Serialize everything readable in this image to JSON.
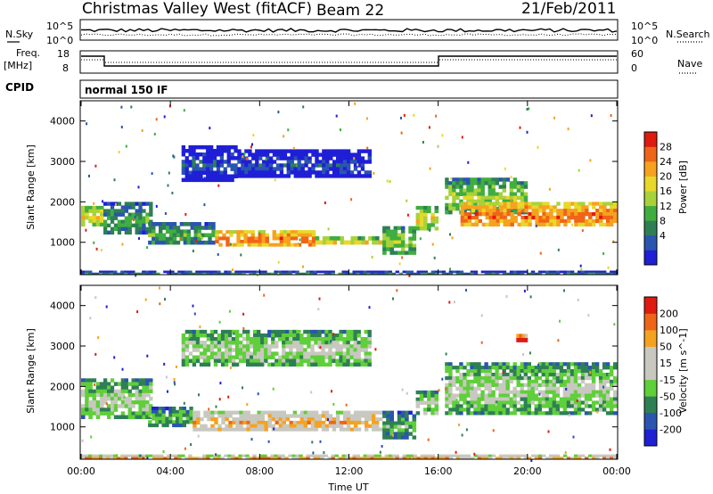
{
  "header": {
    "station": "Christmas Valley West (fitACF)",
    "beam": "Beam 22",
    "date": "21/Feb/2011"
  },
  "status_panels": {
    "nsky_label": "N.Sky",
    "nsky_ticks": [
      "10^5",
      "10^0"
    ],
    "nsearch_label": "N.Search",
    "nsearch_ticks": [
      "10^5",
      "10^0"
    ],
    "freq_label_1": "Freq.",
    "freq_label_2": "[MHz]",
    "freq_ticks": [
      "18",
      "8"
    ],
    "nave_label": "Nave",
    "nave_ticks": [
      "60",
      "0"
    ],
    "cpid_label": "CPID",
    "cpid_value": "normal 150 IF"
  },
  "colors": {
    "power": [
      "#1f1fd6",
      "#2a55b0",
      "#2f7f55",
      "#3fae3f",
      "#a9d23a",
      "#e8d82a",
      "#f6a21e",
      "#f06418",
      "#e01a0e"
    ],
    "velocity": [
      "#1f1fd6",
      "#2a55b0",
      "#2f7f55",
      "#5fcf3a",
      "#c8c8c0",
      "#c8c8c0",
      "#f6a21e",
      "#f06418",
      "#e01a0e"
    ]
  },
  "chart_data": [
    {
      "type": "heatmap",
      "name": "power",
      "ylabel": "Slant Range [km]",
      "ylim": [
        200,
        4500
      ],
      "yticks": [
        "4000",
        "3000",
        "2000",
        "1000"
      ],
      "colorbar_label": "Power [dB]",
      "colorbar_ticks": [
        "28",
        "24",
        "20",
        "16",
        "12",
        "8",
        "4"
      ],
      "x_unit": "hours UT",
      "bands": [
        {
          "x": [
            0.0,
            1.0
          ],
          "y": [
            1400,
            1900
          ],
          "level": 5
        },
        {
          "x": [
            1.0,
            3.2
          ],
          "y": [
            1200,
            2000
          ],
          "level": 3
        },
        {
          "x": [
            3.0,
            6.0
          ],
          "y": [
            950,
            1500
          ],
          "level": 3
        },
        {
          "x": [
            6.0,
            10.5
          ],
          "y": [
            900,
            1300
          ],
          "level": 7
        },
        {
          "x": [
            10.5,
            13.5
          ],
          "y": [
            950,
            1150
          ],
          "level": 5
        },
        {
          "x": [
            13.5,
            15.0
          ],
          "y": [
            700,
            1400
          ],
          "level": 4
        },
        {
          "x": [
            15.0,
            16.0
          ],
          "y": [
            1300,
            1900
          ],
          "level": 5
        },
        {
          "x": [
            16.3,
            20.0
          ],
          "y": [
            1700,
            2600
          ],
          "level": 4
        },
        {
          "x": [
            17.0,
            24.0
          ],
          "y": [
            1400,
            2000
          ],
          "level": 7
        },
        {
          "x": [
            4.5,
            7.0
          ],
          "y": [
            2500,
            3400
          ],
          "level": 1
        },
        {
          "x": [
            7.0,
            13.0
          ],
          "y": [
            2600,
            3300
          ],
          "level": 1
        },
        {
          "x": [
            0.0,
            24.0
          ],
          "y": [
            200,
            300
          ],
          "level": 2
        }
      ]
    },
    {
      "type": "heatmap",
      "name": "velocity",
      "ylabel": "Slant Range [km]",
      "ylim": [
        200,
        4500
      ],
      "yticks": [
        "4000",
        "3000",
        "2000",
        "1000"
      ],
      "colorbar_label": "Velocity [m s^-1]",
      "colorbar_ticks": [
        "200",
        "100",
        "50",
        "15",
        "-15",
        "-50",
        "-100",
        "-200"
      ],
      "x_unit": "hours UT",
      "xticks": [
        "00:00",
        "04:00",
        "08:00",
        "12:00",
        "16:00",
        "20:00",
        "00:00"
      ],
      "xlabel": "Time UT",
      "bands": [
        {
          "x": [
            0.0,
            1.0
          ],
          "y": [
            1200,
            2200
          ],
          "level": 4
        },
        {
          "x": [
            1.0,
            3.2
          ],
          "y": [
            1200,
            2200
          ],
          "level": 4
        },
        {
          "x": [
            3.0,
            5.0
          ],
          "y": [
            1000,
            1500
          ],
          "level": 3
        },
        {
          "x": [
            5.0,
            13.5
          ],
          "y": [
            900,
            1400
          ],
          "level": 6
        },
        {
          "x": [
            13.5,
            15.0
          ],
          "y": [
            700,
            1400
          ],
          "level": 3
        },
        {
          "x": [
            15.0,
            16.0
          ],
          "y": [
            1300,
            1900
          ],
          "level": 4
        },
        {
          "x": [
            16.3,
            24.0
          ],
          "y": [
            1300,
            2600
          ],
          "level": 4
        },
        {
          "x": [
            4.5,
            13.0
          ],
          "y": [
            2500,
            3400
          ],
          "level": 4
        },
        {
          "x": [
            19.5,
            20.0
          ],
          "y": [
            3100,
            3300
          ],
          "level": 8
        },
        {
          "x": [
            0.0,
            24.0
          ],
          "y": [
            200,
            320
          ],
          "level": 6
        }
      ]
    }
  ]
}
